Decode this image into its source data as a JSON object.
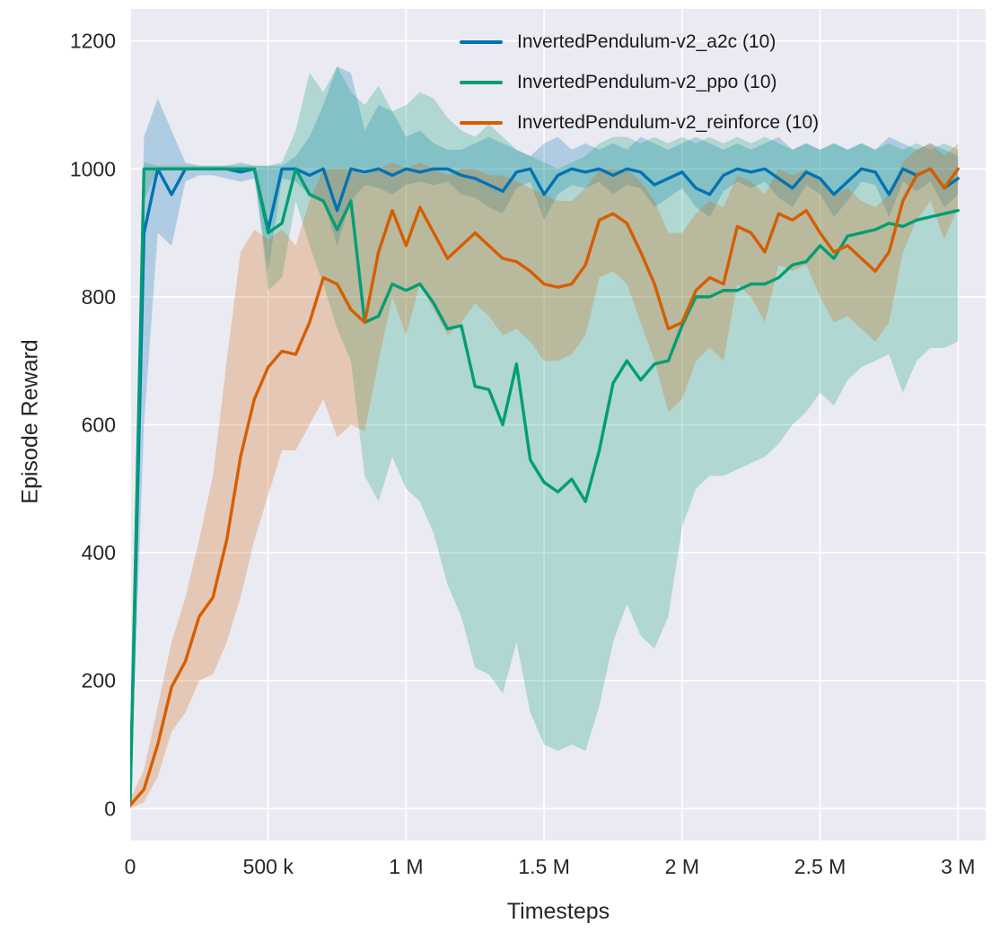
{
  "chart_data": {
    "type": "line",
    "title": "",
    "xlabel": "Timesteps",
    "ylabel": "Episode Reward",
    "xlim": [
      0,
      3.1
    ],
    "ylim": [
      -50,
      1250
    ],
    "x_scale": "millions",
    "grid": true,
    "background": "#eaeaf2",
    "grid_color": "#ffffff",
    "tick_color": "#262626",
    "band_alpha": 0.25,
    "legend_position": "upper center",
    "xticks": [
      {
        "v": 0,
        "label": "0"
      },
      {
        "v": 0.5,
        "label": "500 k"
      },
      {
        "v": 1,
        "label": "1 M"
      },
      {
        "v": 1.5,
        "label": "1.5 M"
      },
      {
        "v": 2,
        "label": "2 M"
      },
      {
        "v": 2.5,
        "label": "2.5 M"
      },
      {
        "v": 3,
        "label": "3 M"
      }
    ],
    "yticks": [
      {
        "v": 0,
        "label": "0"
      },
      {
        "v": 200,
        "label": "200"
      },
      {
        "v": 400,
        "label": "400"
      },
      {
        "v": 600,
        "label": "600"
      },
      {
        "v": 800,
        "label": "800"
      },
      {
        "v": 1000,
        "label": "1000"
      },
      {
        "v": 1200,
        "label": "1200"
      }
    ],
    "x": [
      0,
      0.05,
      0.1,
      0.15,
      0.2,
      0.25,
      0.3,
      0.35,
      0.4,
      0.45,
      0.5,
      0.55,
      0.6,
      0.65,
      0.7,
      0.75,
      0.8,
      0.85,
      0.9,
      0.95,
      1,
      1.05,
      1.1,
      1.15,
      1.2,
      1.25,
      1.3,
      1.35,
      1.4,
      1.45,
      1.5,
      1.55,
      1.6,
      1.65,
      1.7,
      1.75,
      1.8,
      1.85,
      1.9,
      1.95,
      2,
      2.05,
      2.1,
      2.15,
      2.2,
      2.25,
      2.3,
      2.35,
      2.4,
      2.45,
      2.5,
      2.55,
      2.6,
      2.65,
      2.7,
      2.75,
      2.8,
      2.85,
      2.9,
      2.95,
      3
    ],
    "series": [
      {
        "name": "InvertedPendulum-v2_a2c (10)",
        "color": "#0173b2",
        "y": [
          20,
          900,
          1000,
          960,
          1000,
          1000,
          1000,
          1000,
          995,
          1000,
          905,
          1000,
          1000,
          990,
          1000,
          935,
          1000,
          995,
          1000,
          990,
          1000,
          995,
          1000,
          1000,
          990,
          985,
          975,
          965,
          995,
          1000,
          960,
          990,
          1000,
          995,
          1000,
          990,
          1000,
          995,
          975,
          985,
          995,
          970,
          960,
          990,
          1000,
          995,
          1000,
          985,
          970,
          995,
          985,
          960,
          980,
          1000,
          995,
          960,
          1000,
          990,
          1000,
          970,
          985
        ],
        "lo": [
          0,
          600,
          900,
          880,
          980,
          990,
          990,
          985,
          980,
          985,
          840,
          985,
          980,
          960,
          950,
          880,
          950,
          975,
          970,
          960,
          975,
          980,
          975,
          980,
          960,
          955,
          940,
          930,
          970,
          980,
          920,
          960,
          975,
          970,
          980,
          960,
          975,
          970,
          940,
          955,
          970,
          940,
          925,
          965,
          980,
          970,
          980,
          955,
          940,
          975,
          960,
          925,
          950,
          980,
          975,
          925,
          980,
          965,
          980,
          940,
          960
        ],
        "hi": [
          60,
          1050,
          1110,
          1060,
          1010,
          1005,
          1005,
          1005,
          1010,
          1005,
          1005,
          1005,
          1020,
          1050,
          1100,
          1160,
          1150,
          1060,
          1100,
          1090,
          1050,
          1060,
          1040,
          1030,
          1030,
          1040,
          1050,
          1040,
          1030,
          1020,
          1040,
          1050,
          1030,
          1040,
          1030,
          1040,
          1030,
          1050,
          1040,
          1030,
          1040,
          1050,
          1040,
          1030,
          1040,
          1030,
          1040,
          1050,
          1030,
          1040,
          1030,
          1040,
          1030,
          1040,
          1030,
          1050,
          1040,
          1030,
          1040,
          1030,
          1020
        ]
      },
      {
        "name": "InvertedPendulum-v2_ppo (10)",
        "color": "#029e73",
        "y": [
          10,
          1000,
          1000,
          1000,
          1000,
          1000,
          1000,
          1000,
          1000,
          1000,
          900,
          915,
          1000,
          960,
          950,
          905,
          950,
          760,
          770,
          820,
          810,
          820,
          790,
          750,
          755,
          660,
          655,
          600,
          695,
          545,
          510,
          495,
          515,
          480,
          560,
          665,
          700,
          670,
          695,
          700,
          755,
          800,
          800,
          810,
          810,
          820,
          820,
          830,
          850,
          855,
          880,
          860,
          895,
          900,
          905,
          915,
          910,
          920,
          925,
          930,
          935
        ],
        "lo": [
          0,
          950,
          1000,
          1000,
          1000,
          1000,
          1000,
          1000,
          1000,
          1000,
          810,
          830,
          950,
          880,
          820,
          750,
          700,
          520,
          480,
          550,
          500,
          480,
          430,
          350,
          300,
          220,
          210,
          180,
          260,
          150,
          100,
          90,
          100,
          90,
          160,
          260,
          320,
          270,
          250,
          300,
          440,
          500,
          520,
          520,
          530,
          540,
          550,
          570,
          600,
          620,
          650,
          630,
          670,
          690,
          700,
          710,
          650,
          700,
          720,
          720,
          730
        ],
        "hi": [
          40,
          1010,
          1005,
          1005,
          1005,
          1005,
          1005,
          1005,
          1005,
          1005,
          1005,
          1010,
          1060,
          1150,
          1120,
          1160,
          1120,
          1100,
          1130,
          1090,
          1100,
          1120,
          1110,
          1080,
          1060,
          1050,
          1070,
          1050,
          1030,
          1020,
          1010,
          1000,
          1010,
          1020,
          1040,
          1050,
          1050,
          1040,
          1050,
          1040,
          1050,
          1040,
          1050,
          1040,
          1050,
          1040,
          1050,
          1040,
          1030,
          1040,
          1030,
          1040,
          1030,
          1040,
          1030,
          1040,
          1030,
          1040,
          1030,
          1040,
          1030
        ]
      },
      {
        "name": "InvertedPendulum-v2_reinforce (10)",
        "color": "#d55e00",
        "y": [
          5,
          30,
          100,
          190,
          230,
          300,
          330,
          420,
          550,
          640,
          690,
          715,
          710,
          760,
          830,
          820,
          780,
          760,
          870,
          935,
          880,
          940,
          900,
          860,
          880,
          900,
          880,
          860,
          855,
          840,
          820,
          815,
          820,
          850,
          920,
          930,
          915,
          870,
          820,
          750,
          760,
          810,
          830,
          820,
          910,
          900,
          870,
          930,
          920,
          935,
          900,
          870,
          880,
          860,
          840,
          870,
          950,
          990,
          1000,
          970,
          1000
        ],
        "lo": [
          0,
          10,
          50,
          120,
          150,
          200,
          210,
          260,
          330,
          420,
          490,
          560,
          560,
          600,
          640,
          580,
          600,
          590,
          700,
          800,
          740,
          820,
          780,
          740,
          760,
          790,
          770,
          740,
          750,
          730,
          700,
          700,
          710,
          740,
          830,
          840,
          820,
          760,
          700,
          620,
          640,
          700,
          720,
          700,
          820,
          800,
          760,
          850,
          840,
          850,
          800,
          760,
          770,
          750,
          730,
          760,
          870,
          920,
          950,
          890,
          940
        ],
        "hi": [
          15,
          60,
          160,
          260,
          330,
          420,
          520,
          700,
          870,
          905,
          890,
          905,
          880,
          950,
          1000,
          1000,
          1000,
          990,
          1000,
          1010,
          1000,
          1010,
          1000,
          990,
          1000,
          1000,
          990,
          990,
          980,
          970,
          960,
          950,
          950,
          970,
          1000,
          1000,
          1000,
          980,
          950,
          900,
          900,
          930,
          950,
          940,
          990,
          980,
          960,
          1000,
          990,
          1000,
          980,
          960,
          970,
          950,
          940,
          960,
          1010,
          1030,
          1040,
          1020,
          1040
        ]
      }
    ]
  }
}
